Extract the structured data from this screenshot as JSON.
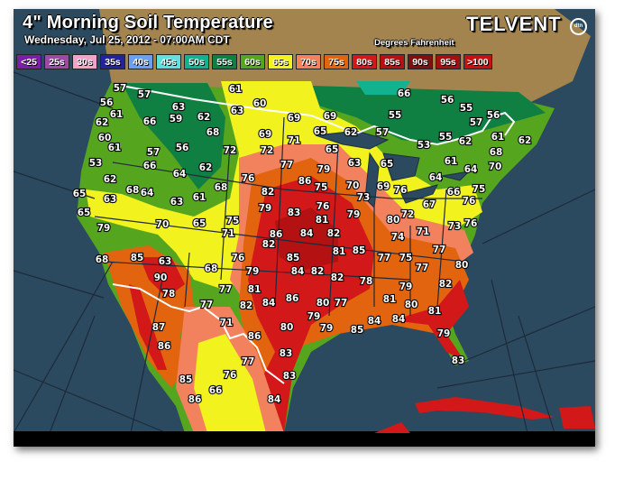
{
  "header": {
    "title": "4\" Morning Soil Temperature",
    "subtitle": "Wednesday, Jul 25, 2012 - 07:00AM CDT",
    "units": "Degrees Fahrenheit",
    "brand": "TELVENT",
    "brand_badge": "dtn"
  },
  "legend": [
    {
      "label": "<25",
      "color": "#7b1fa8"
    },
    {
      "label": "25s",
      "color": "#9b4aa8"
    },
    {
      "label": "30s",
      "color": "#f3a3c9"
    },
    {
      "label": "35s",
      "color": "#23239e"
    },
    {
      "label": "40s",
      "color": "#6b9ff0"
    },
    {
      "label": "45s",
      "color": "#5fe0de"
    },
    {
      "label": "50s",
      "color": "#12b28e"
    },
    {
      "label": "55s",
      "color": "#0f7f42"
    },
    {
      "label": "60s",
      "color": "#56a51e"
    },
    {
      "label": "65s",
      "color": "#f2f21e"
    },
    {
      "label": "70s",
      "color": "#f2825e"
    },
    {
      "label": "75s",
      "color": "#e2640e"
    },
    {
      "label": "80s",
      "color": "#d21818"
    },
    {
      "label": "85s",
      "color": "#b41212"
    },
    {
      "label": "90s",
      "color": "#7e1010"
    },
    {
      "label": "95s",
      "color": "#a31010"
    },
    {
      "label": ">100",
      "color": "#c21212"
    }
  ],
  "map": {
    "colors": {
      "ocean": "#2b4a5f",
      "canada": "#a3844f",
      "border": "#ffffff"
    },
    "temperatures": [
      57,
      57,
      56,
      61,
      63,
      59,
      62,
      61,
      63,
      60,
      69,
      66,
      62,
      60,
      61,
      57,
      56,
      68,
      72,
      69,
      71,
      72,
      77,
      53,
      66,
      64,
      62,
      68,
      76,
      82,
      86,
      79,
      83,
      86,
      82,
      62,
      68,
      64,
      63,
      61,
      65,
      63,
      65,
      79,
      70,
      65,
      75,
      71,
      68,
      85,
      63,
      90,
      68,
      76,
      79,
      84,
      78,
      77,
      81,
      82,
      86,
      87,
      86,
      77,
      71,
      86,
      80,
      77,
      83,
      85,
      83,
      84,
      86,
      66,
      76,
      84,
      82,
      85,
      81,
      85,
      84,
      82,
      82,
      80,
      79,
      78,
      77,
      79,
      84,
      85,
      81,
      80,
      79,
      77,
      77,
      75,
      77,
      80,
      82,
      81,
      84,
      79,
      83,
      80,
      74,
      71,
      72,
      73,
      69,
      65,
      62,
      57,
      55,
      66,
      56,
      55,
      57,
      56,
      62,
      55,
      53,
      62,
      61,
      61,
      64,
      68,
      70,
      66,
      75,
      76,
      76,
      65,
      79,
      63,
      75,
      70,
      73,
      69,
      76,
      76,
      81,
      79,
      65,
      64,
      67
    ]
  }
}
